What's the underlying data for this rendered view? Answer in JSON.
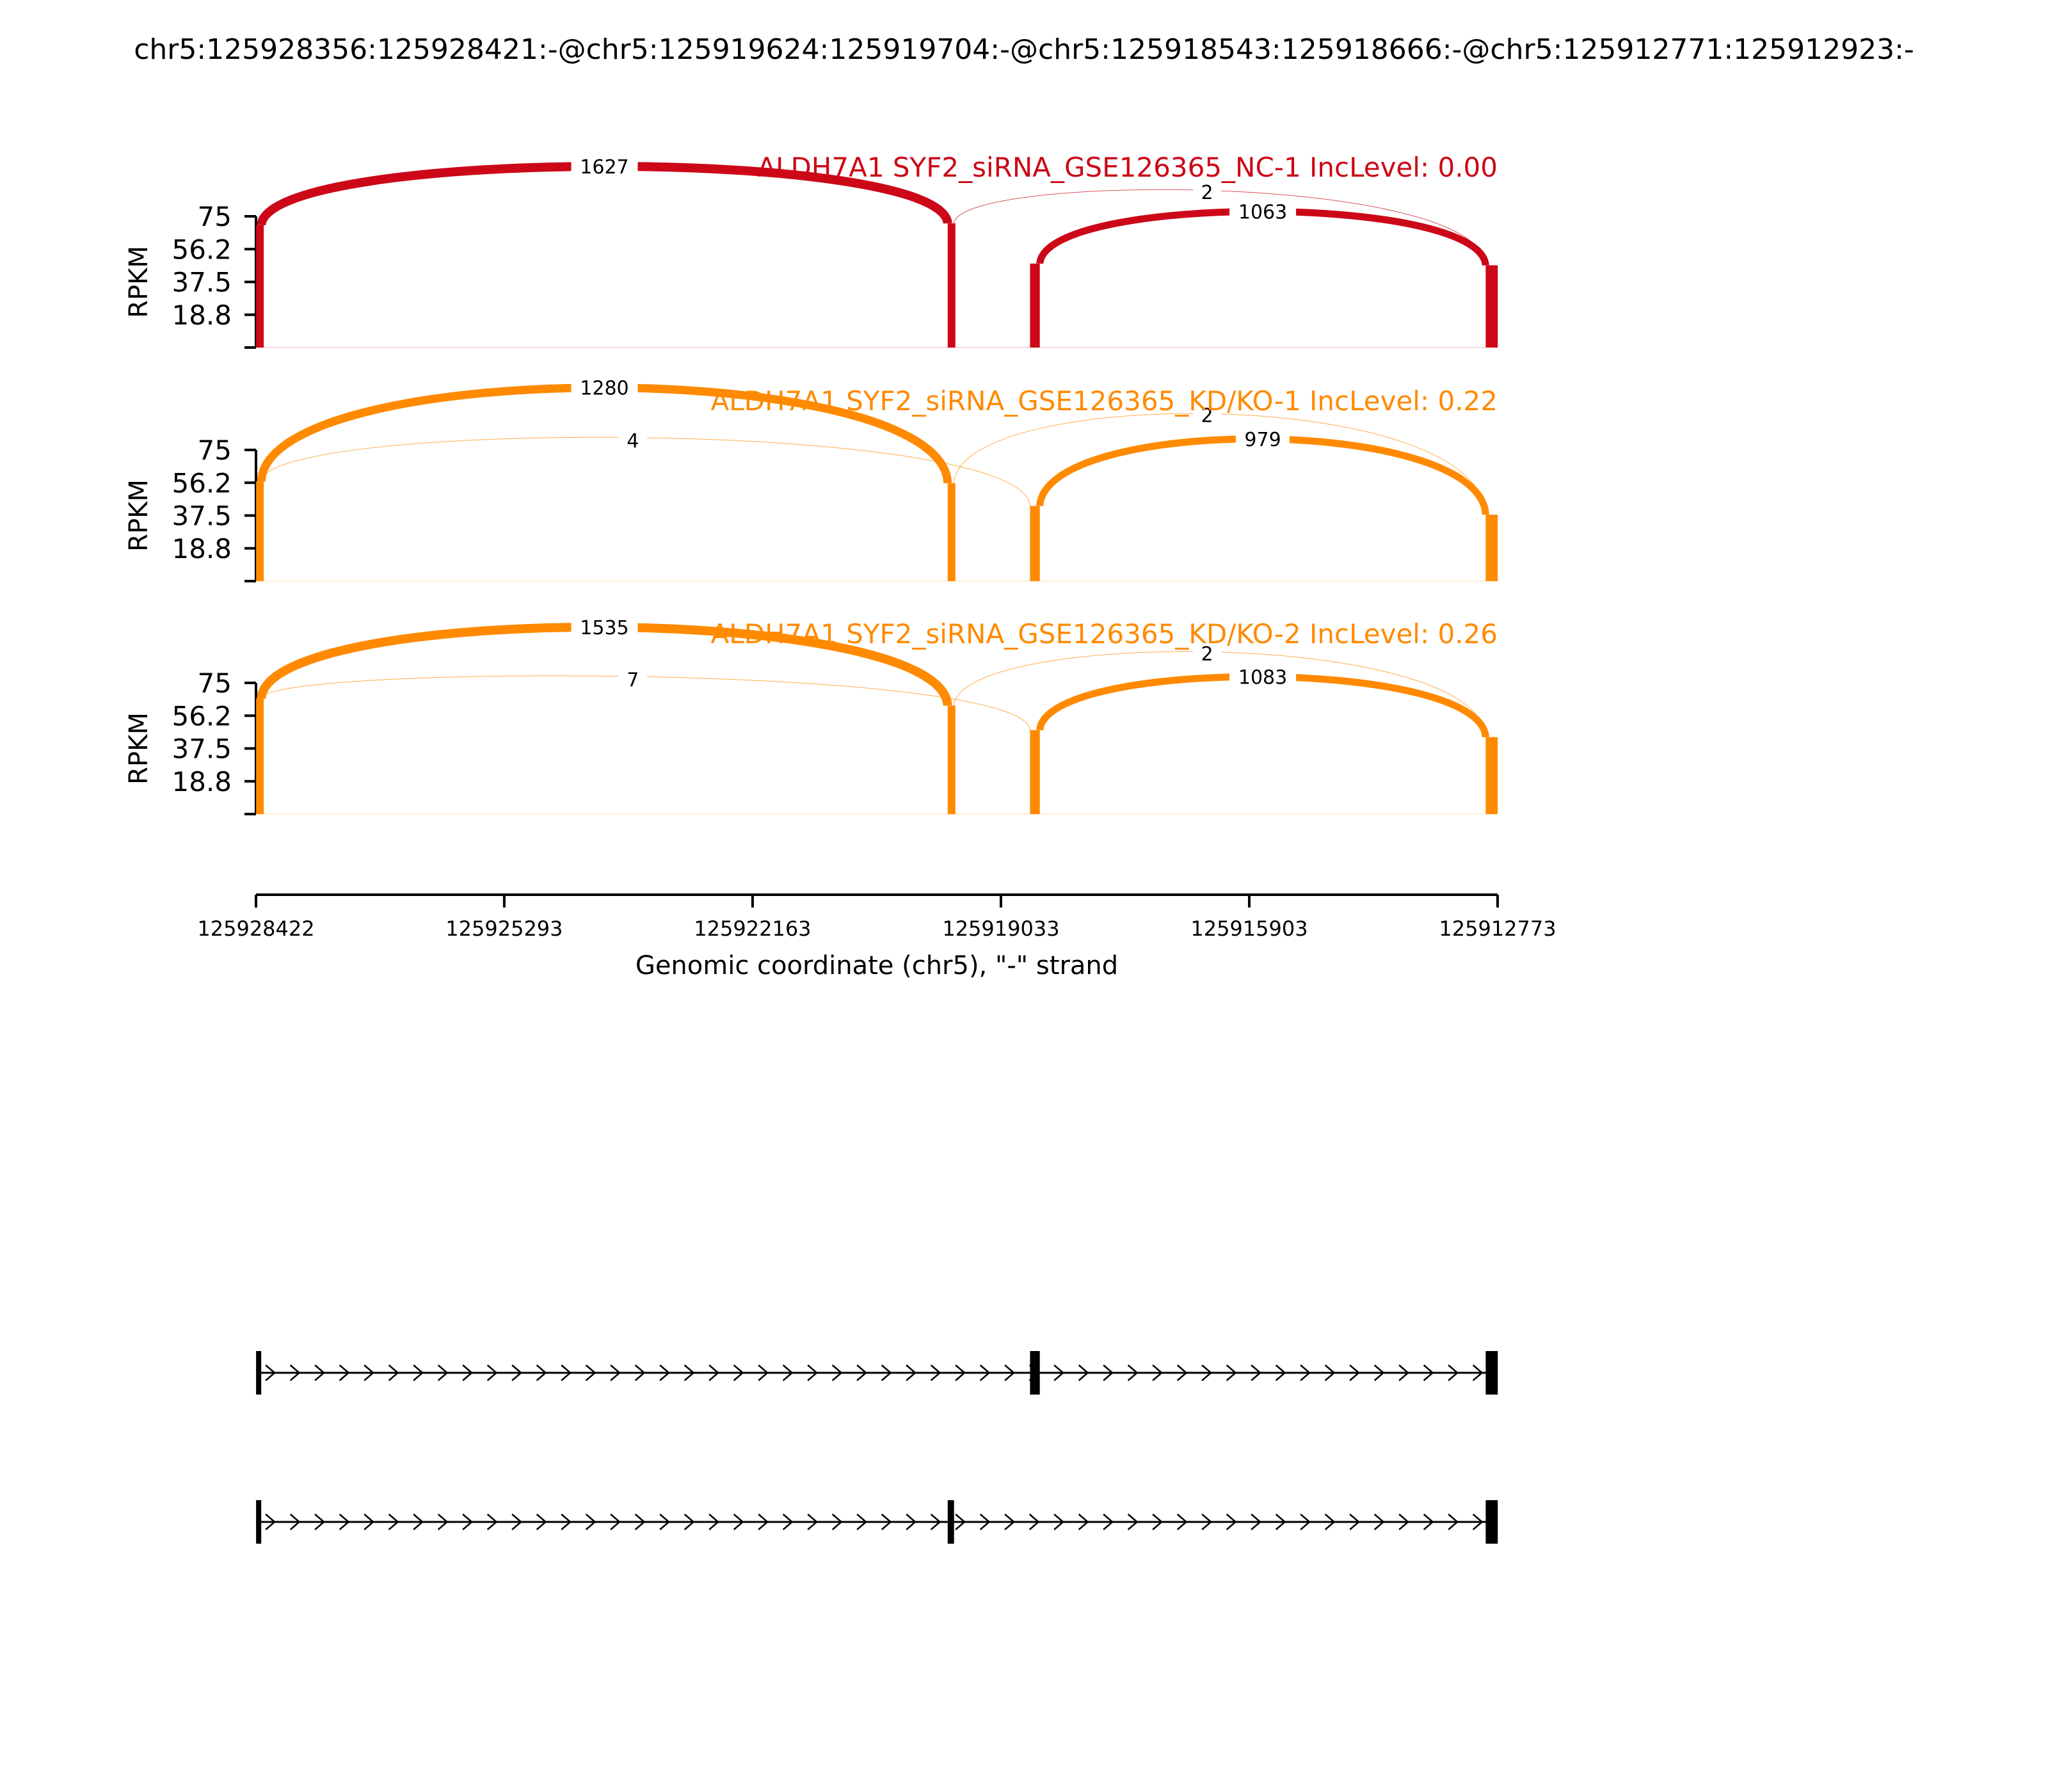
{
  "title": "chr5:125928356:125928421:-@chr5:125919624:125919704:-@chr5:125918543:125918666:-@chr5:125912771:125912923:-",
  "colors": {
    "nc": "#cc0717",
    "kd": "#ff8a00",
    "axis": "#000000",
    "label_bg": "#ffffff"
  },
  "chart_data": {
    "type": "sashimi",
    "xlabel": "Genomic coordinate (chr5), \"-\" strand",
    "x_ticks": [
      "125928422",
      "125925293",
      "125922163",
      "125919033",
      "125915903",
      "125912773"
    ],
    "x_range": [
      125928422,
      125912773
    ],
    "y_label": "RPKM",
    "y_ticks": [
      "75",
      "56.2",
      "37.5",
      "18.8"
    ],
    "ylim": [
      0,
      75
    ],
    "exons": [
      {
        "start": 125928421,
        "end": 125928356
      },
      {
        "start": 125919704,
        "end": 125919624
      },
      {
        "start": 125918666,
        "end": 125918543
      },
      {
        "start": 125912923,
        "end": 125912771
      }
    ],
    "tracks": [
      {
        "label": "ALDH7A1 SYF2_siRNA_GSE126365_NC-1 IncLevel: 0.00",
        "color_key": "nc",
        "exon_rpkm": [
          70,
          71,
          48,
          47
        ],
        "junctions": [
          {
            "from": 125928356,
            "to": 125919704,
            "count": "1627",
            "width": 14
          },
          {
            "from": 125918543,
            "to": 125912923,
            "count": "1063",
            "width": 11
          },
          {
            "from": 125919624,
            "to": 125912923,
            "count": "2",
            "width": 1
          }
        ]
      },
      {
        "label": "ALDH7A1 SYF2_siRNA_GSE126365_KD/KO-1 IncLevel: 0.22",
        "color_key": "kd",
        "exon_rpkm": [
          57,
          56,
          43,
          38
        ],
        "junctions": [
          {
            "from": 125928356,
            "to": 125919704,
            "count": "1280",
            "width": 13
          },
          {
            "from": 125918543,
            "to": 125912923,
            "count": "979",
            "width": 11
          },
          {
            "from": 125928356,
            "to": 125918666,
            "count": "4",
            "width": 1
          },
          {
            "from": 125919624,
            "to": 125912923,
            "count": "2",
            "width": 1
          }
        ]
      },
      {
        "label": "ALDH7A1 SYF2_siRNA_GSE126365_KD/KO-2 IncLevel: 0.26",
        "color_key": "kd",
        "exon_rpkm": [
          66,
          62,
          48,
          44
        ],
        "junctions": [
          {
            "from": 125928356,
            "to": 125919704,
            "count": "1535",
            "width": 14
          },
          {
            "from": 125918543,
            "to": 125912923,
            "count": "1083",
            "width": 11
          },
          {
            "from": 125928356,
            "to": 125918666,
            "count": "7",
            "width": 1
          },
          {
            "from": 125919624,
            "to": 125912923,
            "count": "2",
            "width": 1
          }
        ]
      }
    ],
    "isoforms": [
      {
        "exons": [
          [
            125928421,
            125928356
          ],
          [
            125918666,
            125918543
          ],
          [
            125912923,
            125912771
          ]
        ]
      },
      {
        "exons": [
          [
            125928421,
            125928356
          ],
          [
            125919704,
            125919624
          ],
          [
            125912923,
            125912771
          ]
        ]
      }
    ]
  }
}
